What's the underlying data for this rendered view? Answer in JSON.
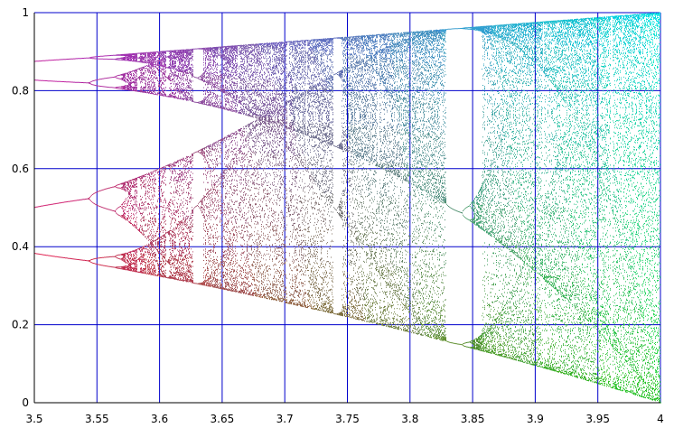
{
  "chart_data": {
    "type": "scatter",
    "title": "",
    "xlabel": "",
    "ylabel": "",
    "xlim": [
      3.5,
      4.0
    ],
    "ylim": [
      0,
      1
    ],
    "grid": true,
    "x_ticks": [
      "3.5",
      "3.55",
      "3.6",
      "3.65",
      "3.7",
      "3.75",
      "3.8",
      "3.85",
      "3.9",
      "3.95",
      "4"
    ],
    "y_ticks": [
      "0",
      "0.2",
      "0.4",
      "0.6",
      "0.8",
      "1"
    ],
    "x_tick_values": [
      3.5,
      3.55,
      3.6,
      3.65,
      3.7,
      3.75,
      3.8,
      3.85,
      3.9,
      3.95,
      4.0
    ],
    "y_tick_values": [
      0,
      0.2,
      0.4,
      0.6,
      0.8,
      1.0
    ],
    "series": [
      {
        "rule": "logistic map x_next = r * x * (1 - x)",
        "r_range": [
          3.5,
          4.0
        ],
        "color_start": "#ff2020",
        "color_end": "#00e6e6",
        "color_mid_low": "#20d020",
        "color_mid_high": "#c020c0"
      }
    ],
    "grid_color": "#0000cc",
    "axis_color": "#000000"
  }
}
